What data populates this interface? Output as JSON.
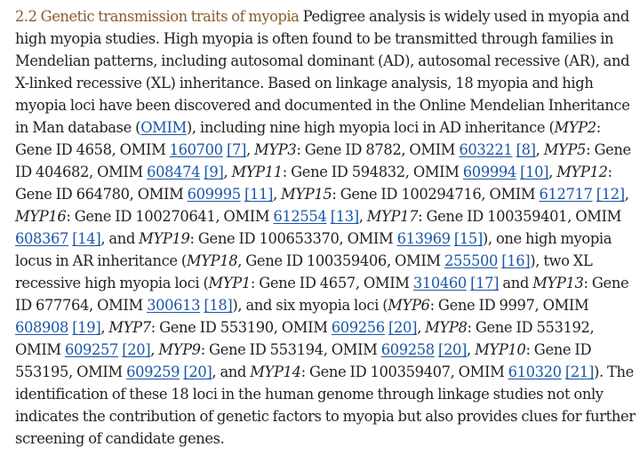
{
  "section": {
    "heading": "2.2 Genetic transmission traits of myopia",
    "segments": [
      {
        "t": "text",
        "v": " Pedigree analysis is widely used in myopia and high myopia studies. High myopia is often found to be transmitted through families in Mendelian patterns, including autosomal dominant (AD), autosomal recessive (AR), and X-linked recessive (XL) inheritance. Based on linkage analysis, 18 myopia and high myopia loci have been discovered and documented in the Online Mendelian Inheritance in Man database ("
      },
      {
        "t": "link",
        "v": "OMIM"
      },
      {
        "t": "text",
        "v": "), including nine high myopia loci in AD inheritance ("
      },
      {
        "t": "gene",
        "v": "MYP2"
      },
      {
        "t": "text",
        "v": ": Gene ID 4658, OMIM "
      },
      {
        "t": "link",
        "v": "160700"
      },
      {
        "t": "text",
        "v": " "
      },
      {
        "t": "link",
        "v": "[7]"
      },
      {
        "t": "text",
        "v": ", "
      },
      {
        "t": "gene",
        "v": "MYP3"
      },
      {
        "t": "text",
        "v": ": Gene ID 8782, OMIM "
      },
      {
        "t": "link",
        "v": "603221"
      },
      {
        "t": "text",
        "v": " "
      },
      {
        "t": "link",
        "v": "[8]"
      },
      {
        "t": "text",
        "v": ", "
      },
      {
        "t": "gene",
        "v": "MYP5"
      },
      {
        "t": "text",
        "v": ": Gene ID 404682, OMIM "
      },
      {
        "t": "link",
        "v": "608474"
      },
      {
        "t": "text",
        "v": " "
      },
      {
        "t": "link",
        "v": "[9]"
      },
      {
        "t": "text",
        "v": ", "
      },
      {
        "t": "gene",
        "v": "MYP11"
      },
      {
        "t": "text",
        "v": ": Gene ID 594832, OMIM "
      },
      {
        "t": "link",
        "v": "609994"
      },
      {
        "t": "text",
        "v": " "
      },
      {
        "t": "link",
        "v": "[10]"
      },
      {
        "t": "text",
        "v": ", "
      },
      {
        "t": "gene",
        "v": "MYP12"
      },
      {
        "t": "text",
        "v": ": Gene ID 664780, OMIM "
      },
      {
        "t": "link",
        "v": "609995"
      },
      {
        "t": "text",
        "v": " "
      },
      {
        "t": "link",
        "v": "[11]"
      },
      {
        "t": "text",
        "v": ", "
      },
      {
        "t": "gene",
        "v": "MYP15"
      },
      {
        "t": "text",
        "v": ": Gene ID 100294716, OMIM "
      },
      {
        "t": "link",
        "v": "612717"
      },
      {
        "t": "text",
        "v": " "
      },
      {
        "t": "link",
        "v": "[12]"
      },
      {
        "t": "text",
        "v": ", "
      },
      {
        "t": "gene",
        "v": "MYP16"
      },
      {
        "t": "text",
        "v": ": Gene ID 100270641, OMIM "
      },
      {
        "t": "link",
        "v": "612554"
      },
      {
        "t": "text",
        "v": " "
      },
      {
        "t": "link",
        "v": "[13]"
      },
      {
        "t": "text",
        "v": ", "
      },
      {
        "t": "gene",
        "v": "MYP17"
      },
      {
        "t": "text",
        "v": ": Gene ID 100359401, OMIM "
      },
      {
        "t": "link",
        "v": "608367"
      },
      {
        "t": "text",
        "v": " "
      },
      {
        "t": "link",
        "v": "[14]"
      },
      {
        "t": "text",
        "v": ", and "
      },
      {
        "t": "gene",
        "v": "MYP19"
      },
      {
        "t": "text",
        "v": ": Gene ID 100653370, OMIM "
      },
      {
        "t": "link",
        "v": "613969"
      },
      {
        "t": "text",
        "v": " "
      },
      {
        "t": "link",
        "v": "[15]"
      },
      {
        "t": "text",
        "v": "), one high myopia locus in AR inheritance ("
      },
      {
        "t": "gene",
        "v": "MYP18"
      },
      {
        "t": "text",
        "v": ", Gene ID 100359406, OMIM "
      },
      {
        "t": "link",
        "v": "255500"
      },
      {
        "t": "text",
        "v": " "
      },
      {
        "t": "link",
        "v": "[16]"
      },
      {
        "t": "text",
        "v": "), two XL recessive high myopia loci ("
      },
      {
        "t": "gene",
        "v": "MYP1"
      },
      {
        "t": "text",
        "v": ": Gene ID 4657, OMIM "
      },
      {
        "t": "link",
        "v": "310460"
      },
      {
        "t": "text",
        "v": " "
      },
      {
        "t": "link",
        "v": "[17]"
      },
      {
        "t": "text",
        "v": " and "
      },
      {
        "t": "gene",
        "v": "MYP13"
      },
      {
        "t": "text",
        "v": ": Gene ID 677764, OMIM "
      },
      {
        "t": "link",
        "v": "300613"
      },
      {
        "t": "text",
        "v": " "
      },
      {
        "t": "link",
        "v": "[18]"
      },
      {
        "t": "text",
        "v": "), and six myopia loci ("
      },
      {
        "t": "gene",
        "v": "MYP6"
      },
      {
        "t": "text",
        "v": ": Gene ID 9997, OMIM "
      },
      {
        "t": "link",
        "v": "608908"
      },
      {
        "t": "text",
        "v": " "
      },
      {
        "t": "link",
        "v": "[19]"
      },
      {
        "t": "text",
        "v": ", "
      },
      {
        "t": "gene",
        "v": "MYP7"
      },
      {
        "t": "text",
        "v": ": Gene ID 553190, OMIM "
      },
      {
        "t": "link",
        "v": "609256"
      },
      {
        "t": "text",
        "v": " "
      },
      {
        "t": "link",
        "v": "[20]"
      },
      {
        "t": "text",
        "v": ", "
      },
      {
        "t": "gene",
        "v": "MYP8"
      },
      {
        "t": "text",
        "v": ": Gene ID 553192, OMIM "
      },
      {
        "t": "link",
        "v": "609257"
      },
      {
        "t": "text",
        "v": " "
      },
      {
        "t": "link",
        "v": "[20]"
      },
      {
        "t": "text",
        "v": ", "
      },
      {
        "t": "gene",
        "v": "MYP9"
      },
      {
        "t": "text",
        "v": ": Gene ID 553194, OMIM "
      },
      {
        "t": "link",
        "v": "609258"
      },
      {
        "t": "text",
        "v": " "
      },
      {
        "t": "link",
        "v": "[20]"
      },
      {
        "t": "text",
        "v": ", "
      },
      {
        "t": "gene",
        "v": "MYP10"
      },
      {
        "t": "text",
        "v": ": Gene ID 553195, OMIM "
      },
      {
        "t": "link",
        "v": "609259"
      },
      {
        "t": "text",
        "v": " "
      },
      {
        "t": "link",
        "v": "[20]"
      },
      {
        "t": "text",
        "v": ", and "
      },
      {
        "t": "gene",
        "v": "MYP14"
      },
      {
        "t": "text",
        "v": ": Gene ID 100359407, OMIM "
      },
      {
        "t": "link",
        "v": "610320"
      },
      {
        "t": "text",
        "v": " "
      },
      {
        "t": "link",
        "v": "[21]"
      },
      {
        "t": "text",
        "v": "). The identification of these 18 loci in the human genome through linkage studies not only indicates the contribution of genetic factors to myopia but also provides clues for further screening of candidate genes."
      }
    ]
  },
  "colors": {
    "heading": "#8a5b2b",
    "link": "#1a56a8",
    "text": "#222222",
    "background": "#ffffff"
  }
}
